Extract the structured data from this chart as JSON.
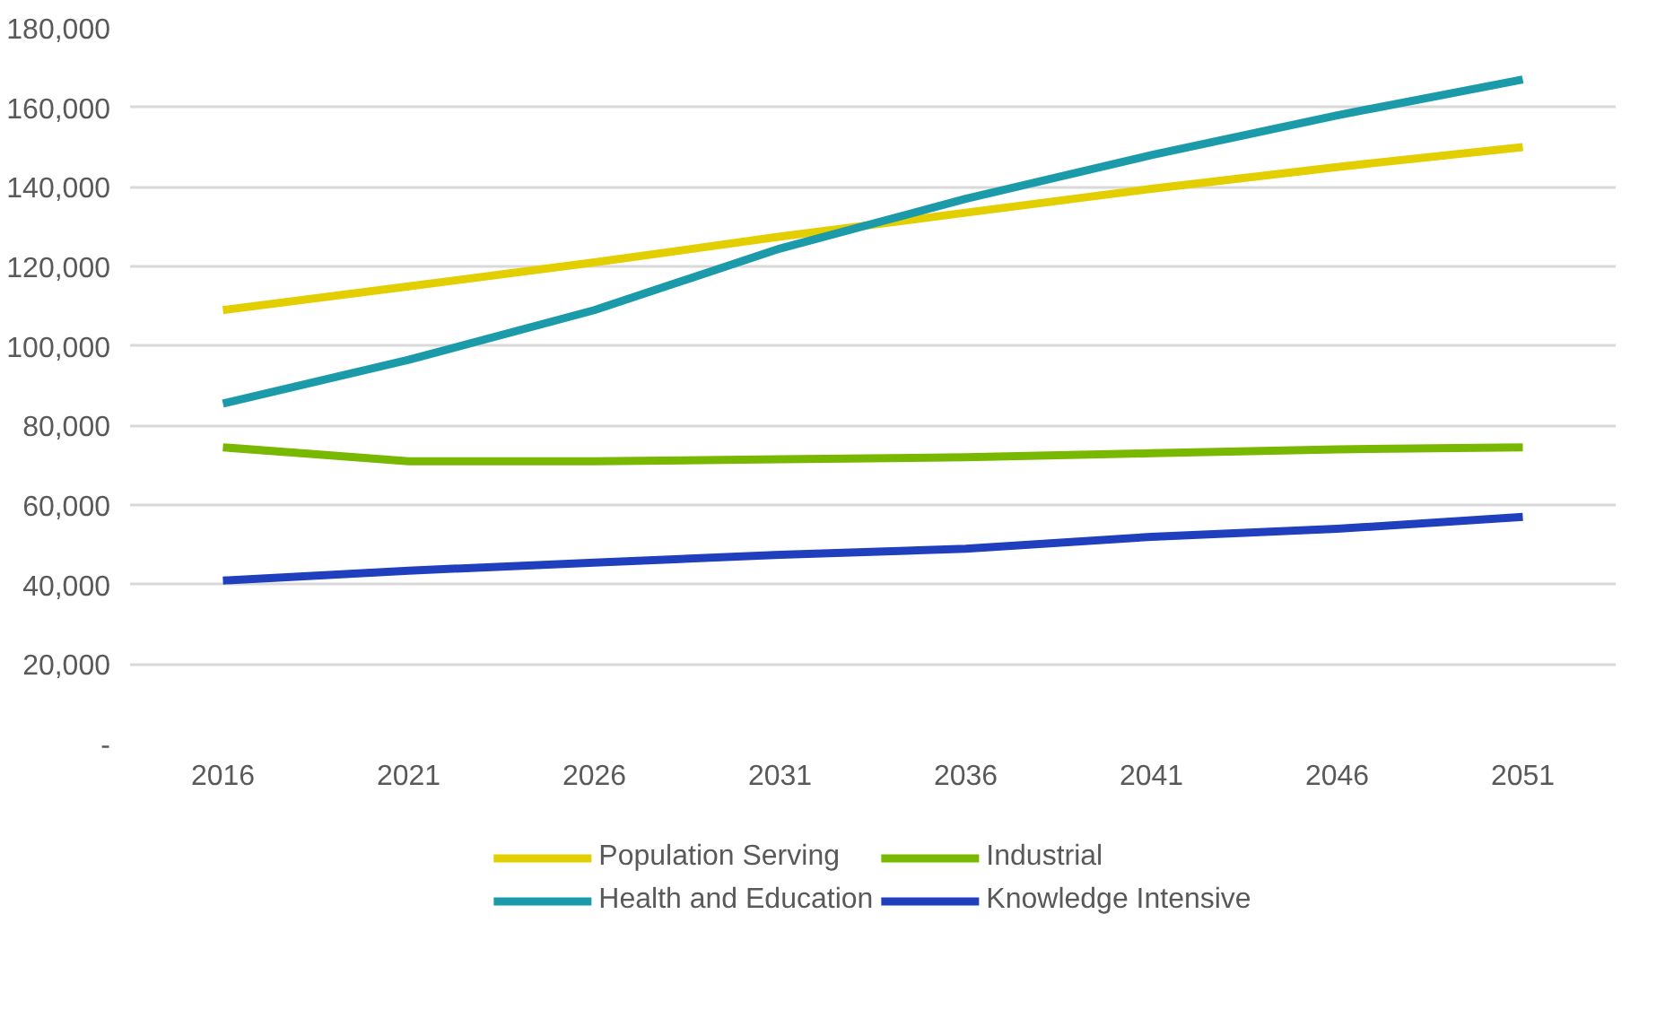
{
  "chart_data": {
    "type": "line",
    "categories": [
      "2016",
      "2021",
      "2026",
      "2031",
      "2036",
      "2041",
      "2046",
      "2051"
    ],
    "ylim": [
      0,
      180000
    ],
    "yticks": [
      {
        "value": 0,
        "label": "-"
      },
      {
        "value": 20000,
        "label": "20,000"
      },
      {
        "value": 40000,
        "label": "40,000"
      },
      {
        "value": 60000,
        "label": "60,000"
      },
      {
        "value": 80000,
        "label": "80,000"
      },
      {
        "value": 100000,
        "label": "100,000"
      },
      {
        "value": 120000,
        "label": "120,000"
      },
      {
        "value": 140000,
        "label": "140,000"
      },
      {
        "value": 160000,
        "label": "160,000"
      },
      {
        "value": 180000,
        "label": "180,000"
      }
    ],
    "grid": "y",
    "legend": "bottom",
    "marker": "none",
    "line_style": "solid",
    "series": [
      {
        "name": "Population Serving",
        "color": "#e3cf00",
        "values": [
          109000,
          115000,
          121000,
          127500,
          133500,
          139500,
          145000,
          150000
        ]
      },
      {
        "name": "Industrial",
        "color": "#78b800",
        "values": [
          74500,
          71000,
          71000,
          71500,
          72000,
          73000,
          74000,
          74500
        ]
      },
      {
        "name": "Health and Education",
        "color": "#1b9aaa",
        "values": [
          85500,
          96500,
          109000,
          124500,
          137000,
          148000,
          158000,
          167000
        ]
      },
      {
        "name": "Knowledge Intensive",
        "color": "#1f3fbf",
        "values": [
          41000,
          43500,
          45500,
          47500,
          49000,
          52000,
          54000,
          57000
        ]
      }
    ]
  }
}
